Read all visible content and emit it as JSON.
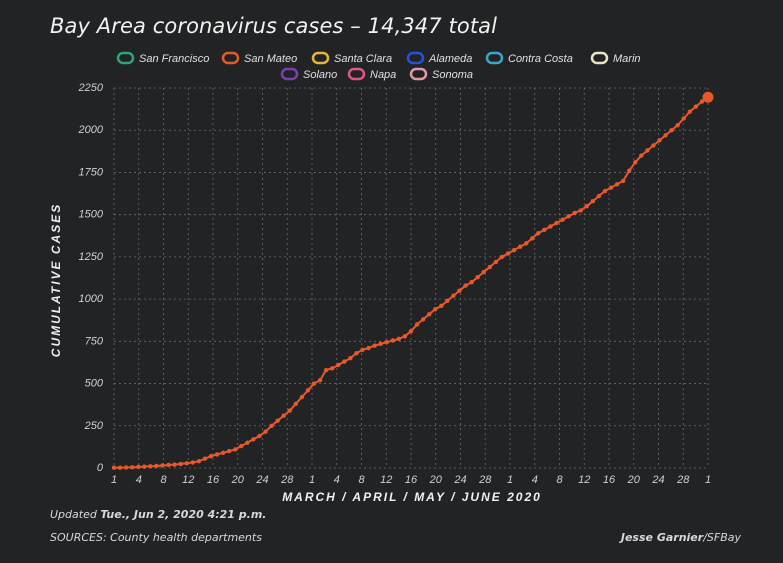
{
  "title": "Bay Area coronavirus cases – 14,347 total",
  "footer": {
    "updated_prefix": "Updated",
    "updated_value": "Tue., Jun 2, 2020 4:21 p.m.",
    "sources": "SOURCES: County health departments",
    "credit_name": "Jesse Garnier",
    "credit_suffix": "/SFBay"
  },
  "colors": {
    "background": "#222325",
    "grid": "#6a6a6a",
    "series": "#e8582a"
  },
  "chart_data": {
    "type": "line",
    "title": "Bay Area coronavirus cases – 14,347 total",
    "xlabel": "MARCH / APRIL / MAY / JUNE 2020",
    "ylabel": "CUMULATIVE CASES",
    "ylim": [
      0,
      2250
    ],
    "yticks": [
      0,
      250,
      500,
      750,
      1000,
      1250,
      1500,
      1750,
      2000,
      2250
    ],
    "xticks": [
      "1",
      "4",
      "8",
      "12",
      "16",
      "20",
      "24",
      "28",
      "1",
      "4",
      "8",
      "12",
      "16",
      "20",
      "24",
      "28",
      "1",
      "4",
      "8",
      "12",
      "16",
      "20",
      "24",
      "28",
      "1"
    ],
    "legend": [
      {
        "name": "San Francisco",
        "color": "#2fa37a"
      },
      {
        "name": "San Mateo",
        "color": "#e8582a"
      },
      {
        "name": "Santa Clara",
        "color": "#e7b43a"
      },
      {
        "name": "Alameda",
        "color": "#2b4fd6"
      },
      {
        "name": "Contra Costa",
        "color": "#3aa6c8"
      },
      {
        "name": "Marin",
        "color": "#e9e4c3"
      },
      {
        "name": "Solano",
        "color": "#7b3fb0"
      },
      {
        "name": "Napa",
        "color": "#e0558a"
      },
      {
        "name": "Sonoma",
        "color": "#e39aa8"
      }
    ],
    "legend_placement": "top-center",
    "grid": true,
    "series": [
      {
        "name": "San Mateo",
        "values": [
          2,
          2,
          3,
          4,
          6,
          8,
          10,
          12,
          15,
          18,
          20,
          24,
          28,
          33,
          40,
          55,
          70,
          80,
          90,
          100,
          110,
          130,
          150,
          170,
          190,
          215,
          250,
          280,
          310,
          340,
          380,
          420,
          460,
          500,
          520,
          580,
          590,
          610,
          630,
          650,
          680,
          700,
          710,
          725,
          735,
          745,
          755,
          765,
          780,
          810,
          850,
          880,
          910,
          940,
          960,
          990,
          1020,
          1050,
          1080,
          1100,
          1130,
          1160,
          1190,
          1220,
          1250,
          1270,
          1290,
          1310,
          1330,
          1360,
          1390,
          1410,
          1430,
          1450,
          1470,
          1490,
          1510,
          1525,
          1550,
          1580,
          1610,
          1640,
          1660,
          1680,
          1700,
          1760,
          1810,
          1850,
          1880,
          1910,
          1940,
          1970,
          2000,
          2030,
          2070,
          2110,
          2140,
          2170,
          2195
        ]
      }
    ]
  }
}
